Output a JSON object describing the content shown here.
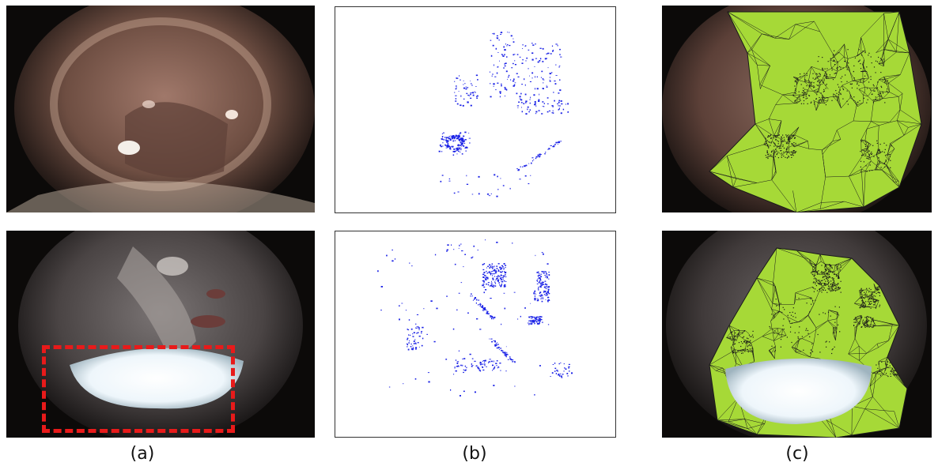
{
  "captions": {
    "a": "(a)",
    "b": "(b)",
    "c": "(c)"
  },
  "colors": {
    "mesh_fill": "#a6d937",
    "mesh_stroke": "#1a1a1a",
    "feature_points": "#1b22e6",
    "highlight_box": "#e81a1a",
    "specular_glare": "#eef6fb"
  }
}
